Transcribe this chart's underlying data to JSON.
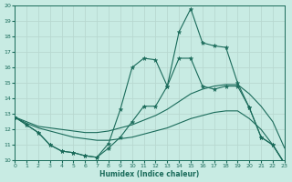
{
  "background_color": "#c8ebe3",
  "grid_color": "#b8d8d0",
  "line_color": "#1a6b5a",
  "xlabel": "Humidex (Indice chaleur)",
  "xlim": [
    0,
    23
  ],
  "ylim": [
    10,
    20
  ],
  "xticks": [
    0,
    1,
    2,
    3,
    4,
    5,
    6,
    7,
    8,
    9,
    10,
    11,
    12,
    13,
    14,
    15,
    16,
    17,
    18,
    19,
    20,
    21,
    22,
    23
  ],
  "yticks": [
    10,
    11,
    12,
    13,
    14,
    15,
    16,
    17,
    18,
    19,
    20
  ],
  "series1_x": [
    0,
    1,
    2,
    3,
    4,
    5,
    6,
    7,
    8,
    9,
    10,
    11,
    12,
    13,
    14,
    15,
    16,
    17,
    18,
    19,
    20,
    21,
    22,
    23
  ],
  "series1_y": [
    12.8,
    12.3,
    11.8,
    11.0,
    10.6,
    10.5,
    10.3,
    10.2,
    11.1,
    13.3,
    16.0,
    16.6,
    16.5,
    14.8,
    18.3,
    19.8,
    17.6,
    17.4,
    17.3,
    15.0,
    13.4,
    11.5,
    11.0,
    9.8
  ],
  "series2_x": [
    0,
    1,
    2,
    3,
    4,
    5,
    6,
    7,
    8,
    9,
    10,
    11,
    12,
    13,
    14,
    15,
    16,
    17,
    18,
    19,
    20,
    21,
    22,
    23
  ],
  "series2_y": [
    12.8,
    12.3,
    11.8,
    11.0,
    10.6,
    10.5,
    10.3,
    10.2,
    10.8,
    11.5,
    12.5,
    13.5,
    13.5,
    14.8,
    16.6,
    16.6,
    14.8,
    14.6,
    14.8,
    14.8,
    13.4,
    11.5,
    11.0,
    9.8
  ],
  "series3_x": [
    0,
    1,
    2,
    3,
    4,
    5,
    6,
    7,
    8,
    9,
    10,
    11,
    12,
    13,
    14,
    15,
    16,
    17,
    18,
    19,
    20,
    21,
    22,
    23
  ],
  "series3_y": [
    12.8,
    12.5,
    12.2,
    12.1,
    12.0,
    11.9,
    11.8,
    11.8,
    11.9,
    12.1,
    12.3,
    12.6,
    12.9,
    13.3,
    13.8,
    14.3,
    14.6,
    14.8,
    14.9,
    14.9,
    14.3,
    13.5,
    12.5,
    10.8
  ],
  "series4_x": [
    0,
    1,
    2,
    3,
    4,
    5,
    6,
    7,
    8,
    9,
    10,
    11,
    12,
    13,
    14,
    15,
    16,
    17,
    18,
    19,
    20,
    21,
    22,
    23
  ],
  "series4_y": [
    12.8,
    12.4,
    12.1,
    11.9,
    11.7,
    11.5,
    11.4,
    11.3,
    11.3,
    11.4,
    11.5,
    11.7,
    11.9,
    12.1,
    12.4,
    12.7,
    12.9,
    13.1,
    13.2,
    13.2,
    12.7,
    12.0,
    11.0,
    9.8
  ]
}
